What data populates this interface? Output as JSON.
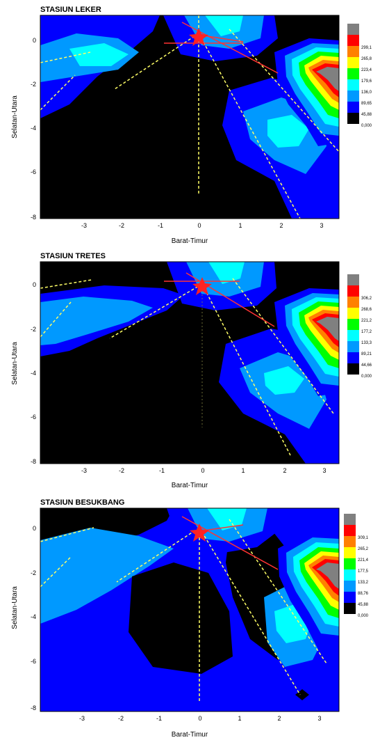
{
  "chart_data": [
    {
      "type": "contour",
      "title": "STASIUN LEKER",
      "xlabel": "Barat-Timur",
      "ylabel": "Selatan-Utara",
      "xlim": [
        -4,
        3.5
      ],
      "ylim": [
        -8,
        1
      ],
      "x_ticks": [
        "-3",
        "-2",
        "-1",
        "0",
        "1",
        "2",
        "3"
      ],
      "y_ticks": [
        "0",
        "-2",
        "-4",
        "-6",
        "-8"
      ],
      "colorbar_levels": [
        "",
        "299,1",
        "265,8",
        "223,4",
        "179,6",
        "136,0",
        "89,65",
        "45,88",
        "0,000"
      ]
    },
    {
      "type": "contour",
      "title": "STASIUN TRETES",
      "xlabel": "Barat-Timur",
      "ylabel": "Selatan-Utara",
      "xlim": [
        -4,
        3.5
      ],
      "ylim": [
        -8,
        1
      ],
      "x_ticks": [
        "-3",
        "-2",
        "-1",
        "0",
        "1",
        "2",
        "3"
      ],
      "y_ticks": [
        "0",
        "-2",
        "-4",
        "-6",
        "-8"
      ],
      "colorbar_levels": [
        "",
        "306,2",
        "268,6",
        "221,2",
        "177,2",
        "133,3",
        "89,21",
        "44,66",
        "0,000"
      ]
    },
    {
      "type": "contour",
      "title": "STASIUN BESUKBANG",
      "xlabel": "Barat-Timur",
      "ylabel": "Selatan-Utara",
      "xlim": [
        -4,
        3.5
      ],
      "ylim": [
        -8,
        1
      ],
      "x_ticks": [
        "-3",
        "-2",
        "-1",
        "0",
        "1",
        "2",
        "3"
      ],
      "y_ticks": [
        "0",
        "-2",
        "-4",
        "-6",
        "-8"
      ],
      "colorbar_levels": [
        "",
        "309,1",
        "265,2",
        "221,4",
        "177,5",
        "133,2",
        "88,76",
        "45,88",
        "0,000"
      ]
    }
  ],
  "colors": {
    "level_colors": [
      "#808080",
      "#ff0000",
      "#ff8000",
      "#ffff00",
      "#00ff00",
      "#00ffff",
      "#0099ff",
      "#0000ff",
      "#000000"
    ],
    "fault_line": "#ffff66",
    "ray_line": "#ff3333"
  }
}
